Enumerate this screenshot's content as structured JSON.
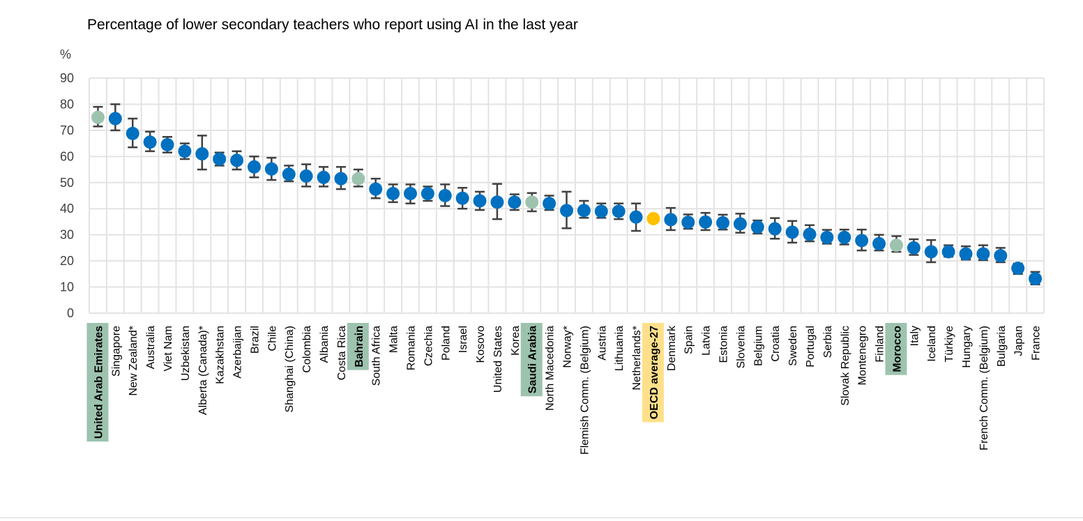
{
  "chart_data": {
    "type": "scatter",
    "title": "Percentage of lower secondary teachers who report using AI in the last year",
    "ylabel": "%",
    "ylim": [
      0,
      90
    ],
    "yticks": [
      0,
      10,
      20,
      30,
      40,
      50,
      60,
      70,
      80,
      90
    ],
    "grid": true,
    "colors": {
      "default": "#0070c0",
      "highlight": "#9dc3ae",
      "average": "#ffc000",
      "highlight_label_bg": "#9dc3ae",
      "average_label_bg": "#ffe08a",
      "error_bar": "#404040"
    },
    "points": [
      {
        "label": "United Arab Emirates",
        "value": 75,
        "low": 71.5,
        "high": 79,
        "kind": "highlight"
      },
      {
        "label": "Singapore",
        "value": 74.5,
        "low": 70,
        "high": 80,
        "kind": "default"
      },
      {
        "label": "New Zealand*",
        "value": 68.8,
        "low": 63.5,
        "high": 74.5,
        "kind": "default"
      },
      {
        "label": "Australia",
        "value": 65.5,
        "low": 62,
        "high": 69.5,
        "kind": "default"
      },
      {
        "label": "Viet Nam",
        "value": 64.5,
        "low": 61.5,
        "high": 67.5,
        "kind": "default"
      },
      {
        "label": "Uzbekistan",
        "value": 62,
        "low": 59,
        "high": 65,
        "kind": "default"
      },
      {
        "label": "Alberta (Canada)*",
        "value": 61,
        "low": 55,
        "high": 68,
        "kind": "default"
      },
      {
        "label": "Kazakhstan",
        "value": 59,
        "low": 56.5,
        "high": 61.5,
        "kind": "default"
      },
      {
        "label": "Azerbaijan",
        "value": 58.5,
        "low": 55,
        "high": 62,
        "kind": "default"
      },
      {
        "label": "Brazil",
        "value": 56,
        "low": 52,
        "high": 60,
        "kind": "default"
      },
      {
        "label": "Chile",
        "value": 55.2,
        "low": 51,
        "high": 59.5,
        "kind": "default"
      },
      {
        "label": "Shanghai (China)",
        "value": 53.2,
        "low": 50.5,
        "high": 56.5,
        "kind": "default"
      },
      {
        "label": "Colombia",
        "value": 52.5,
        "low": 48.5,
        "high": 57,
        "kind": "default"
      },
      {
        "label": "Albania",
        "value": 52,
        "low": 48.5,
        "high": 56,
        "kind": "default"
      },
      {
        "label": "Costa Rica",
        "value": 51.5,
        "low": 47.5,
        "high": 56,
        "kind": "default"
      },
      {
        "label": "Bahrain",
        "value": 51.5,
        "low": 48.5,
        "high": 55,
        "kind": "highlight"
      },
      {
        "label": "South Africa",
        "value": 47.5,
        "low": 44,
        "high": 51.5,
        "kind": "default"
      },
      {
        "label": "Malta",
        "value": 45.8,
        "low": 42.5,
        "high": 49.3,
        "kind": "default"
      },
      {
        "label": "Romania",
        "value": 45.8,
        "low": 42,
        "high": 49.3,
        "kind": "default"
      },
      {
        "label": "Czechia",
        "value": 45.8,
        "low": 43,
        "high": 48.5,
        "kind": "default"
      },
      {
        "label": "Poland",
        "value": 45,
        "low": 41,
        "high": 49.3,
        "kind": "default"
      },
      {
        "label": "Israel",
        "value": 44,
        "low": 40,
        "high": 48,
        "kind": "default"
      },
      {
        "label": "Kosovo",
        "value": 43,
        "low": 39.5,
        "high": 46.5,
        "kind": "default"
      },
      {
        "label": "United States",
        "value": 42.5,
        "low": 36,
        "high": 49.5,
        "kind": "default"
      },
      {
        "label": "Korea",
        "value": 42.5,
        "low": 39.5,
        "high": 45.5,
        "kind": "default"
      },
      {
        "label": "Saudi Arabia",
        "value": 42.5,
        "low": 39,
        "high": 46,
        "kind": "highlight"
      },
      {
        "label": "North Macedonia",
        "value": 42,
        "low": 39.5,
        "high": 45,
        "kind": "default"
      },
      {
        "label": "Norway*",
        "value": 39.3,
        "low": 32.5,
        "high": 46.5,
        "kind": "default"
      },
      {
        "label": "Flemish Comm. (Belgium)",
        "value": 39.3,
        "low": 36.5,
        "high": 43,
        "kind": "default"
      },
      {
        "label": "Austria",
        "value": 39,
        "low": 36.5,
        "high": 42,
        "kind": "default"
      },
      {
        "label": "Lithuania",
        "value": 39,
        "low": 36,
        "high": 42,
        "kind": "default"
      },
      {
        "label": "Netherlands*",
        "value": 36.8,
        "low": 31.5,
        "high": 42,
        "kind": "default"
      },
      {
        "label": "OECD average-27",
        "value": 36.2,
        "kind": "average"
      },
      {
        "label": "Denmark",
        "value": 35.8,
        "low": 31.8,
        "high": 40.3,
        "kind": "default"
      },
      {
        "label": "Spain",
        "value": 34.8,
        "low": 32.3,
        "high": 37.8,
        "kind": "default"
      },
      {
        "label": "Latvia",
        "value": 34.9,
        "low": 31.8,
        "high": 38.4,
        "kind": "default"
      },
      {
        "label": "Estonia",
        "value": 34.6,
        "low": 32,
        "high": 37.7,
        "kind": "default"
      },
      {
        "label": "Slovenia",
        "value": 34.2,
        "low": 30.8,
        "high": 38.1,
        "kind": "default"
      },
      {
        "label": "Belgium",
        "value": 33,
        "low": 30.5,
        "high": 35.5,
        "kind": "default"
      },
      {
        "label": "Croatia",
        "value": 32.3,
        "low": 28.5,
        "high": 36.4,
        "kind": "default"
      },
      {
        "label": "Sweden",
        "value": 31,
        "low": 27,
        "high": 35.3,
        "kind": "default"
      },
      {
        "label": "Portugal",
        "value": 30.2,
        "low": 27.5,
        "high": 33.7,
        "kind": "default"
      },
      {
        "label": "Serbia",
        "value": 29,
        "low": 26.6,
        "high": 31.9,
        "kind": "default"
      },
      {
        "label": "Slovak Republic",
        "value": 29,
        "low": 26.3,
        "high": 32,
        "kind": "default"
      },
      {
        "label": "Montenegro",
        "value": 27.8,
        "low": 24,
        "high": 32,
        "kind": "default"
      },
      {
        "label": "Finland",
        "value": 26.6,
        "low": 24,
        "high": 30,
        "kind": "default"
      },
      {
        "label": "Morocco",
        "value": 26,
        "low": 23.5,
        "high": 29.5,
        "kind": "highlight"
      },
      {
        "label": "Italy",
        "value": 25,
        "low": 22.3,
        "high": 28.3,
        "kind": "default"
      },
      {
        "label": "Iceland",
        "value": 23.5,
        "low": 19.5,
        "high": 28,
        "kind": "default"
      },
      {
        "label": "Türkiye",
        "value": 23.5,
        "low": 21.6,
        "high": 26,
        "kind": "default"
      },
      {
        "label": "Hungary",
        "value": 22.7,
        "low": 20.5,
        "high": 25.6,
        "kind": "default"
      },
      {
        "label": "French Comm. (Belgium)",
        "value": 22.7,
        "low": 20.3,
        "high": 26,
        "kind": "default"
      },
      {
        "label": "Bulgaria",
        "value": 22,
        "low": 19.5,
        "high": 25,
        "kind": "default"
      },
      {
        "label": "Japan",
        "value": 17.2,
        "low": 15,
        "high": 19,
        "kind": "default"
      },
      {
        "label": "France",
        "value": 13.2,
        "low": 11,
        "high": 15.8,
        "kind": "default"
      }
    ]
  }
}
